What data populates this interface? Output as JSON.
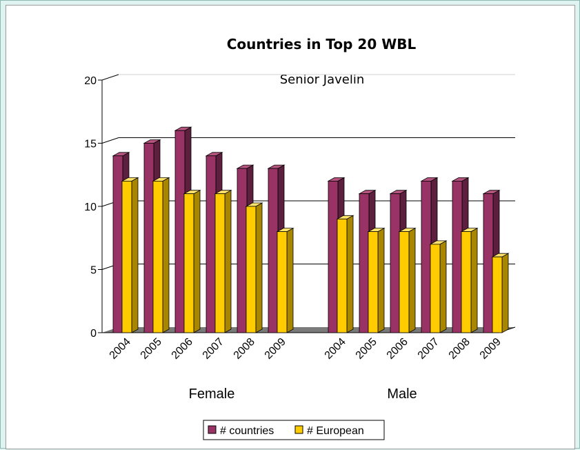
{
  "colors": {
    "countries_front": "#993366",
    "countries_side": "#5c1f3d",
    "countries_top": "#b5557f",
    "european_front": "#ffcc00",
    "european_side": "#a88600",
    "european_top": "#ffe36b",
    "floor": "#7a7a7a",
    "background": "#dff3f0"
  },
  "chart_data": {
    "type": "bar",
    "title": "Countries in Top 20 WBL",
    "subtitle": "Senior  Javelin",
    "ylim": [
      0,
      20
    ],
    "yticks": [
      0,
      5,
      10,
      15,
      20
    ],
    "grid": true,
    "legend_position": "bottom",
    "groups": [
      {
        "name": "Female",
        "categories": [
          "2004",
          "2005",
          "2006",
          "2007",
          "2008",
          "2009"
        ],
        "series": [
          {
            "name": "# countries",
            "values": [
              14,
              15,
              16,
              14,
              13,
              13
            ]
          },
          {
            "name": "# European",
            "values": [
              12,
              12,
              11,
              11,
              10,
              8
            ]
          }
        ]
      },
      {
        "name": "Male",
        "categories": [
          "2004",
          "2005",
          "2006",
          "2007",
          "2008",
          "2009"
        ],
        "series": [
          {
            "name": "# countries",
            "values": [
              12,
              11,
              11,
              12,
              12,
              11
            ]
          },
          {
            "name": "# European",
            "values": [
              9,
              8,
              8,
              7,
              8,
              6
            ]
          }
        ]
      }
    ],
    "legend": [
      "# countries",
      "# European"
    ]
  }
}
